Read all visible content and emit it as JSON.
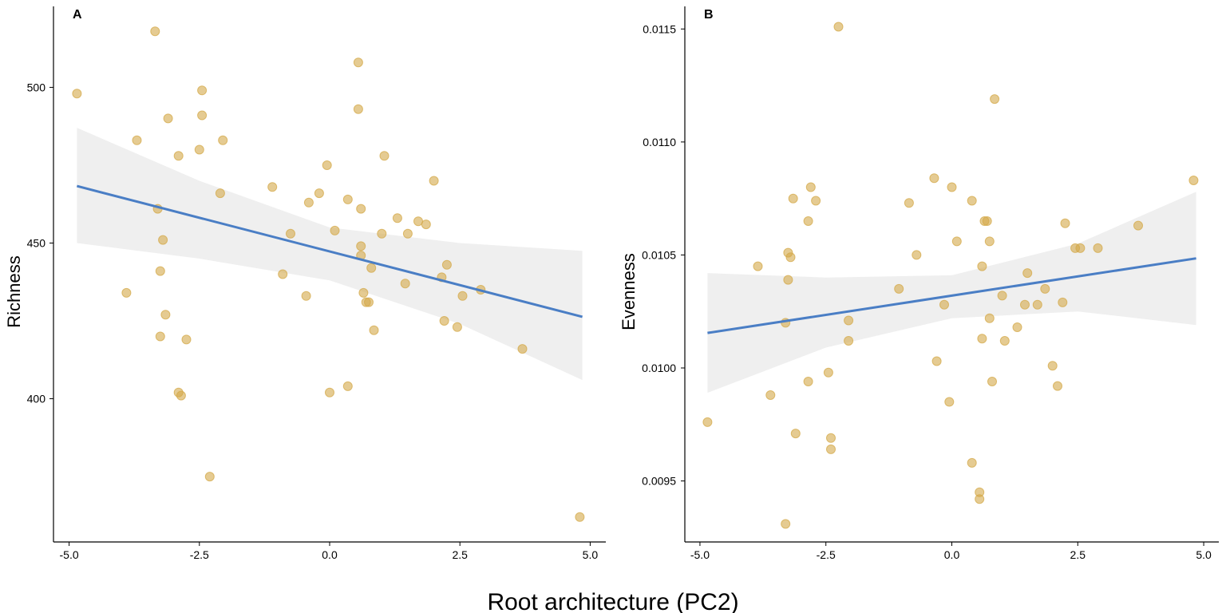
{
  "figure": {
    "xlabel": "Root architecture (PC2)"
  },
  "colors": {
    "point": "#D4A94A",
    "line": "#4A7EC5",
    "band": "#EFEFEF",
    "axis": "#000000"
  },
  "chart_data": [
    {
      "type": "scatter",
      "panel_label": "A",
      "xlabel": "",
      "ylabel": "Richness",
      "xlim": [
        -5.3,
        5.3
      ],
      "ylim": [
        354,
        526
      ],
      "xticks": [
        -5.0,
        -2.5,
        0.0,
        2.5,
        5.0
      ],
      "xtick_labels": [
        "-5.0",
        "-2.5",
        "0.0",
        "2.5",
        "5.0"
      ],
      "yticks": [
        400,
        450,
        500
      ],
      "ytick_labels": [
        "400",
        "450",
        "500"
      ],
      "grid": false,
      "points": [
        [
          -4.85,
          498
        ],
        [
          -3.9,
          434
        ],
        [
          -3.7,
          483
        ],
        [
          -3.35,
          518
        ],
        [
          -3.3,
          461
        ],
        [
          -3.25,
          441
        ],
        [
          -3.2,
          451
        ],
        [
          -3.15,
          427
        ],
        [
          -3.1,
          490
        ],
        [
          -3.25,
          420
        ],
        [
          -2.9,
          478
        ],
        [
          -2.9,
          402
        ],
        [
          -2.85,
          401
        ],
        [
          -2.75,
          419
        ],
        [
          -2.5,
          480
        ],
        [
          -2.45,
          499
        ],
        [
          -2.45,
          491
        ],
        [
          -2.3,
          375
        ],
        [
          -2.1,
          466
        ],
        [
          -2.05,
          483
        ],
        [
          -1.1,
          468
        ],
        [
          -0.9,
          440
        ],
        [
          -0.75,
          453
        ],
        [
          -0.45,
          433
        ],
        [
          -0.4,
          463
        ],
        [
          -0.2,
          466
        ],
        [
          -0.05,
          475
        ],
        [
          0.0,
          402
        ],
        [
          0.1,
          454
        ],
        [
          0.35,
          464
        ],
        [
          0.35,
          404
        ],
        [
          0.55,
          508
        ],
        [
          0.55,
          493
        ],
        [
          0.6,
          446
        ],
        [
          0.6,
          449
        ],
        [
          0.6,
          461
        ],
        [
          0.65,
          434
        ],
        [
          0.7,
          431
        ],
        [
          0.75,
          431
        ],
        [
          0.8,
          442
        ],
        [
          0.85,
          422
        ],
        [
          1.0,
          453
        ],
        [
          1.05,
          478
        ],
        [
          1.3,
          458
        ],
        [
          1.45,
          437
        ],
        [
          1.5,
          453
        ],
        [
          1.7,
          457
        ],
        [
          1.85,
          456
        ],
        [
          2.0,
          470
        ],
        [
          2.15,
          439
        ],
        [
          2.2,
          425
        ],
        [
          2.25,
          443
        ],
        [
          2.45,
          423
        ],
        [
          2.55,
          433
        ],
        [
          2.9,
          435
        ],
        [
          3.7,
          416
        ],
        [
          4.8,
          362
        ]
      ],
      "fit": {
        "x": [
          -4.85,
          4.85
        ],
        "y": [
          468.3,
          426.3
        ]
      },
      "ci": {
        "x": [
          -4.85,
          -2.5,
          0.0,
          2.5,
          4.85
        ],
        "lower": [
          450,
          445,
          438,
          424,
          406
        ],
        "upper": [
          487,
          470,
          455,
          450,
          447.5
        ]
      }
    },
    {
      "type": "scatter",
      "panel_label": "B",
      "xlabel": "",
      "ylabel": "Evenness",
      "xlim": [
        -5.3,
        5.3
      ],
      "ylim": [
        0.00923,
        0.0116
      ],
      "xticks": [
        -5.0,
        -2.5,
        0.0,
        2.5,
        5.0
      ],
      "xtick_labels": [
        "-5.0",
        "-2.5",
        "0.0",
        "2.5",
        "5.0"
      ],
      "yticks": [
        0.0095,
        0.01,
        0.0105,
        0.011,
        0.0115
      ],
      "ytick_labels": [
        "0.0095",
        "0.0100",
        "0.0105",
        "0.0110",
        "0.0115"
      ],
      "grid": false,
      "points": [
        [
          -4.85,
          0.00976
        ],
        [
          -3.85,
          0.01045
        ],
        [
          -3.6,
          0.00988
        ],
        [
          -3.3,
          0.00931
        ],
        [
          -3.3,
          0.0102
        ],
        [
          -3.25,
          0.01051
        ],
        [
          -3.25,
          0.01039
        ],
        [
          -3.2,
          0.01049
        ],
        [
          -3.15,
          0.01075
        ],
        [
          -3.1,
          0.00971
        ],
        [
          -2.85,
          0.01065
        ],
        [
          -2.85,
          0.00994
        ],
        [
          -2.8,
          0.0108
        ],
        [
          -2.7,
          0.01074
        ],
        [
          -2.45,
          0.00998
        ],
        [
          -2.4,
          0.00969
        ],
        [
          -2.4,
          0.00964
        ],
        [
          -2.25,
          0.01151
        ],
        [
          -2.05,
          0.01021
        ],
        [
          -2.05,
          0.01012
        ],
        [
          -1.05,
          0.01035
        ],
        [
          -0.85,
          0.01073
        ],
        [
          -0.7,
          0.0105
        ],
        [
          -0.35,
          0.01084
        ],
        [
          -0.3,
          0.01003
        ],
        [
          -0.15,
          0.01028
        ],
        [
          -0.05,
          0.00985
        ],
        [
          0.0,
          0.0108
        ],
        [
          0.1,
          0.01056
        ],
        [
          0.4,
          0.01074
        ],
        [
          0.4,
          0.00958
        ],
        [
          0.55,
          0.00945
        ],
        [
          0.55,
          0.00942
        ],
        [
          0.6,
          0.01045
        ],
        [
          0.6,
          0.01013
        ],
        [
          0.65,
          0.01065
        ],
        [
          0.7,
          0.01065
        ],
        [
          0.75,
          0.01022
        ],
        [
          0.75,
          0.01056
        ],
        [
          0.8,
          0.00994
        ],
        [
          0.85,
          0.01119
        ],
        [
          1.0,
          0.01032
        ],
        [
          1.05,
          0.01012
        ],
        [
          1.3,
          0.01018
        ],
        [
          1.45,
          0.01028
        ],
        [
          1.5,
          0.01042
        ],
        [
          1.7,
          0.01028
        ],
        [
          1.85,
          0.01035
        ],
        [
          2.0,
          0.01001
        ],
        [
          2.1,
          0.00992
        ],
        [
          2.2,
          0.01029
        ],
        [
          2.25,
          0.01064
        ],
        [
          2.45,
          0.01053
        ],
        [
          2.55,
          0.01053
        ],
        [
          2.9,
          0.01053
        ],
        [
          3.7,
          0.01063
        ],
        [
          4.8,
          0.01083
        ]
      ],
      "fit": {
        "x": [
          -4.85,
          4.85
        ],
        "y": [
          0.010155,
          0.010485
        ]
      },
      "ci": {
        "x": [
          -4.85,
          -2.5,
          0.0,
          2.5,
          4.85
        ],
        "lower": [
          0.00989,
          0.01009,
          0.01022,
          0.01025,
          0.01019
        ],
        "upper": [
          0.01042,
          0.0104,
          0.01041,
          0.01055,
          0.01078
        ]
      }
    }
  ]
}
